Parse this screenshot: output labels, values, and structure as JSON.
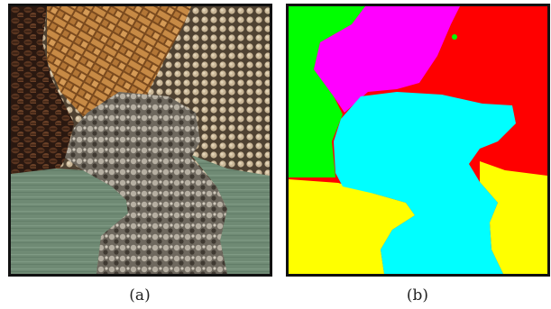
{
  "figure": {
    "panel_a": {
      "caption": "(a)"
    },
    "panel_b": {
      "caption": "(b)"
    }
  },
  "colors": {
    "coffee": "#3b2417",
    "wicker": "#a86a2e",
    "burlap": "#b8a485",
    "water": "#6f8a74",
    "metal": "#8a8479",
    "seg_green": "#00ff00",
    "seg_magenta": "#ff00ff",
    "seg_red": "#ff0000",
    "seg_cyan": "#00ffff",
    "seg_yellow": "#ffff00"
  }
}
